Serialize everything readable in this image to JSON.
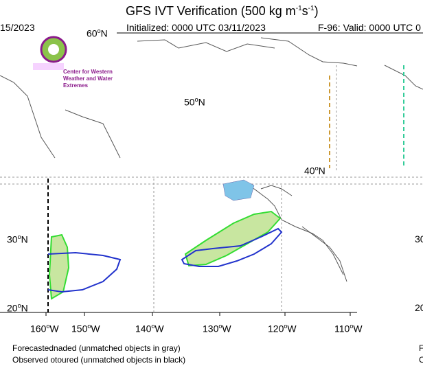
{
  "header": {
    "title_prefix": "GFS IVT Verification (500 kg m",
    "title_exp1": "-1",
    "title_mid": "s",
    "title_exp2": "-1",
    "title_suffix": ")",
    "initialized": "Initialized: 0000 UTC 03/11/2023",
    "valid": "F-96: Valid: 0000 UTC 0",
    "left_date": "15/2023"
  },
  "logo": {
    "text": "Center for Western Weather and Water Extremes"
  },
  "latitudes": [
    {
      "value": "60",
      "suffix": "N",
      "id": "lat-60-left"
    },
    {
      "value": "50",
      "suffix": "N",
      "id": "lat-50-inner"
    },
    {
      "value": "40",
      "suffix": "N",
      "id": "lat-40-inner"
    },
    {
      "value": "30",
      "suffix": "N",
      "id": "lat-30-left"
    },
    {
      "value": "20",
      "suffix": "N",
      "id": "lat-20-left"
    },
    {
      "value": "30",
      "suffix": "",
      "id": "lat-30-right"
    },
    {
      "value": "20",
      "suffix": "",
      "id": "lat-20-right"
    }
  ],
  "longitudes": [
    {
      "value": "160",
      "suffix": "W"
    },
    {
      "value": "150",
      "suffix": "W"
    },
    {
      "value": "140",
      "suffix": "W"
    },
    {
      "value": "130",
      "suffix": "W"
    },
    {
      "value": "120",
      "suffix": "W"
    },
    {
      "value": "110",
      "suffix": "W"
    }
  ],
  "footer": {
    "forecast_label": "Forecasted",
    "forecast_text": "naded (unmatched objects in gray)",
    "observed_label": "Observed o",
    "observed_text": "toured (unmatched objects in black)",
    "right_f": "F",
    "right_o": "O"
  },
  "colors": {
    "forecast_fill": "#c8e6a0",
    "forecast_edge": "#33dd33",
    "observed_edge": "#2233cc",
    "lake_fill": "#7fc4e8",
    "coast": "#333333"
  }
}
